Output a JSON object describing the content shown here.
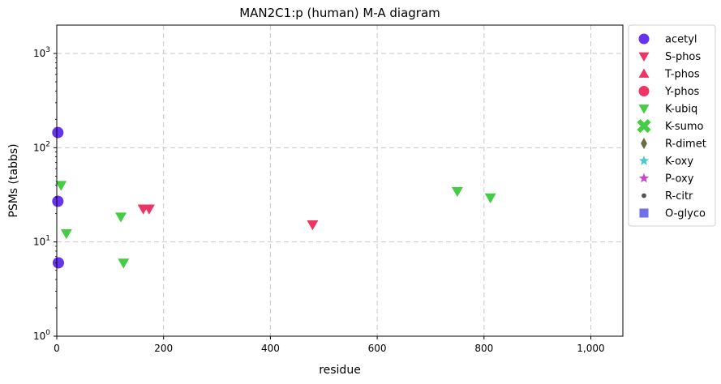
{
  "chart_data": {
    "type": "scatter",
    "title": "MAN2C1:p (human) M-A diagram",
    "xlabel": "residue",
    "ylabel": "PSMs (tabbs)",
    "xlim": [
      0,
      1060
    ],
    "ylim": [
      1,
      2000
    ],
    "yscale": "log",
    "grid": true,
    "legend": "outside-right",
    "x_ticks": [
      {
        "value": 0,
        "label": "0"
      },
      {
        "value": 200,
        "label": "200"
      },
      {
        "value": 400,
        "label": "400"
      },
      {
        "value": 600,
        "label": "600"
      },
      {
        "value": 800,
        "label": "800"
      },
      {
        "value": 1000,
        "label": "1,000"
      }
    ],
    "y_ticks": [
      {
        "value": 1,
        "base": "10",
        "exp": "0"
      },
      {
        "value": 10,
        "base": "10",
        "exp": "1"
      },
      {
        "value": 100,
        "base": "10",
        "exp": "2"
      },
      {
        "value": 1000,
        "base": "10",
        "exp": "3"
      }
    ],
    "series": [
      {
        "name": "acetyl",
        "marker": "circle",
        "color": "#6633ee",
        "points": [
          [
            2,
            145
          ],
          [
            2,
            27
          ],
          [
            3,
            6
          ]
        ]
      },
      {
        "name": "S-phos",
        "marker": "triangle-down",
        "color": "#ee3366",
        "points": [
          [
            162,
            22.5
          ],
          [
            173,
            22.5
          ],
          [
            479,
            15.3
          ]
        ]
      },
      {
        "name": "T-phos",
        "marker": "triangle-up",
        "color": "#ee3366",
        "points": []
      },
      {
        "name": "Y-phos",
        "marker": "circle",
        "color": "#ee3366",
        "points": []
      },
      {
        "name": "K-ubiq",
        "marker": "triangle-down",
        "color": "#44cc44",
        "points": [
          [
            8,
            40
          ],
          [
            18,
            12.3
          ],
          [
            120,
            18.5
          ],
          [
            125,
            6
          ],
          [
            750,
            34.5
          ],
          [
            812,
            29.5
          ]
        ]
      },
      {
        "name": "K-sumo",
        "marker": "x",
        "color": "#44cc44",
        "points": []
      },
      {
        "name": "R-dimet",
        "marker": "diamond",
        "color": "#6b6b47",
        "points": []
      },
      {
        "name": "K-oxy",
        "marker": "star",
        "color": "#44cccc",
        "points": []
      },
      {
        "name": "P-oxy",
        "marker": "star",
        "color": "#cc44cc",
        "points": []
      },
      {
        "name": "R-citr",
        "marker": "dot",
        "color": "#555555",
        "points": []
      },
      {
        "name": "O-glyco",
        "marker": "square",
        "color": "#7070e8",
        "points": []
      }
    ]
  }
}
